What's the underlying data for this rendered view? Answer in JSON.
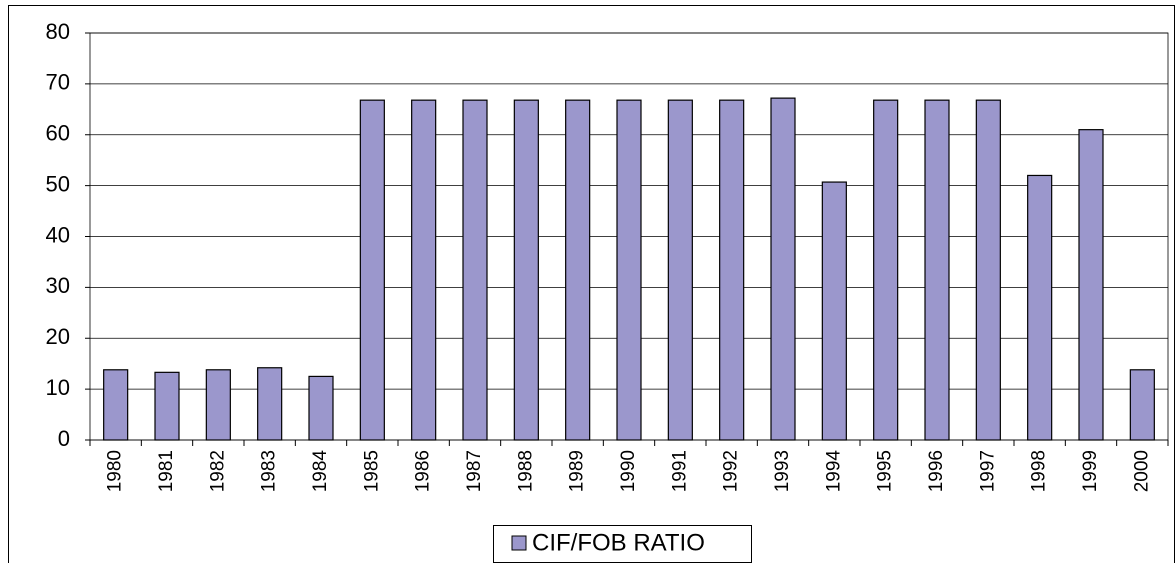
{
  "chart_data": {
    "type": "bar",
    "categories": [
      "1980",
      "1981",
      "1982",
      "1983",
      "1984",
      "1985",
      "1986",
      "1987",
      "1988",
      "1989",
      "1990",
      "1991",
      "1992",
      "1993",
      "1994",
      "1995",
      "1996",
      "1997",
      "1998",
      "1999",
      "2000"
    ],
    "series": [
      {
        "name": "CIF/FOB RATIO",
        "color": "#9b97cc",
        "values": [
          13.8,
          13.3,
          13.8,
          14.2,
          12.5,
          66.8,
          66.8,
          66.8,
          66.8,
          66.8,
          66.8,
          66.8,
          66.8,
          67.2,
          50.7,
          66.8,
          66.8,
          66.8,
          52,
          61,
          13.8
        ]
      }
    ],
    "ylim": [
      0,
      80
    ],
    "yticks": [
      0,
      10,
      20,
      30,
      40,
      50,
      60,
      70,
      80
    ],
    "grid": true,
    "legend": "bottom"
  }
}
